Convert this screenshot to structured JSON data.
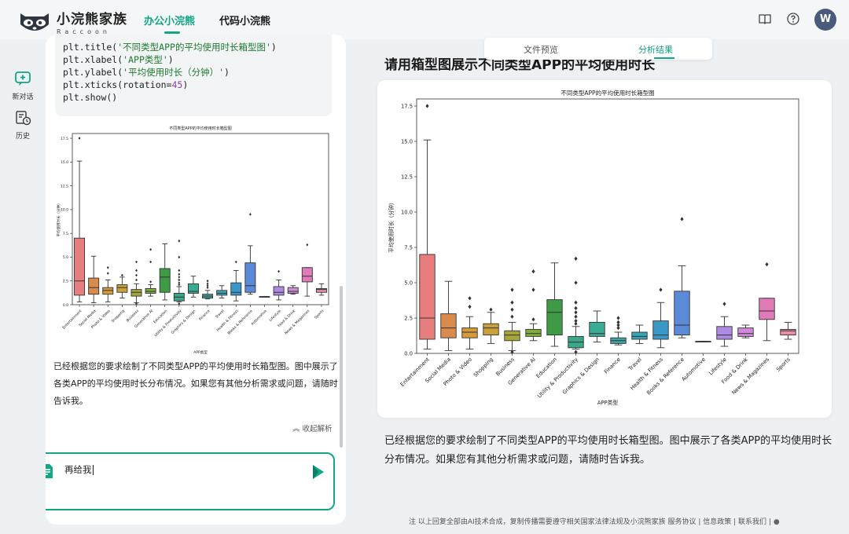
{
  "app": {
    "title": "小浣熊家族",
    "subtitle": "Raccoon"
  },
  "nav": {
    "tabs": [
      {
        "label": "办公小浣熊",
        "active": true
      },
      {
        "label": "代码小浣熊",
        "active": false
      }
    ]
  },
  "user": {
    "avatar_initial": "W"
  },
  "topbar_icons": [
    "book-icon",
    "help-icon"
  ],
  "sidebar": {
    "items": [
      {
        "label": "新对话",
        "icon": "new-chat-icon"
      },
      {
        "label": "历史",
        "icon": "history-icon"
      }
    ]
  },
  "chat": {
    "code_lines": [
      {
        "fn": "plt.title(",
        "arg": "'不同类型APP的平均使用时长箱型图'",
        "end": ")"
      },
      {
        "fn": "plt.xlabel(",
        "arg": "'APP类型'",
        "end": ")"
      },
      {
        "fn": "plt.ylabel(",
        "arg": "'平均使用时长（分钟）'",
        "end": ")"
      },
      {
        "fn": "plt.xticks(rotation=",
        "num": "45",
        "end": ")"
      },
      {
        "fn": "plt.show()",
        "end": ""
      }
    ],
    "reply": "已经根据您的要求绘制了不同类型APP的平均使用时长箱型图。图中展示了各类APP的平均使用时长分布情况。如果您有其他分析需求或问题，请随时告诉我。",
    "collapse_label": "收起解析",
    "input_value": "再给我"
  },
  "preview": {
    "tabs": [
      {
        "label": "文件预览",
        "active": false
      },
      {
        "label": "分析结果",
        "active": true
      }
    ],
    "title": "请用箱型图展示不同类型APP的平均使用时长",
    "reply": "已经根据您的要求绘制了不同类型APP的平均使用时长箱型图。图中展示了各类APP的平均使用时长分布情况。如果您有其他分析需求或问题，请随时告诉我。"
  },
  "footer": {
    "text": "注  以上回复全部由AI技术合成，复制传播需要遵守相关国家法律法规及小浣熊家族 服务协议 | 信息政策 | 联系我们 |"
  },
  "colors": {
    "accent": "#12a586"
  },
  "chart_data": {
    "type": "box",
    "title": "不同类型APP的平均使用时长箱型图",
    "xlabel": "APP类型",
    "ylabel": "平均使用时长（分钟）",
    "ylim": [
      0,
      18
    ],
    "yticks": [
      0.0,
      2.5,
      5.0,
      7.5,
      10.0,
      12.5,
      15.0,
      17.5
    ],
    "categories": [
      "Entertainment",
      "Social Media",
      "Photo & Video",
      "Shopping",
      "Business",
      "Generative AI",
      "Education",
      "Utility & Productivity",
      "Graphics & Design",
      "Finance",
      "Travel",
      "Health & Fitness",
      "Books & Reference",
      "Automotive",
      "Lifestyle",
      "Food & Drink",
      "News & Magazines",
      "Sports"
    ],
    "colors": [
      "#e87d7d",
      "#d98a4d",
      "#d59a3a",
      "#c9a03a",
      "#a6a53a",
      "#7fae3a",
      "#3f9a45",
      "#3aa68a",
      "#3aab95",
      "#3aa8a8",
      "#3aa4b8",
      "#3a98c8",
      "#5a8ad8",
      "#8a86d8",
      "#b08ae0",
      "#d08ad8",
      "#e07ab8",
      "#e890a8"
    ],
    "boxes": [
      {
        "whislo": 0.3,
        "q1": 1.0,
        "med": 2.5,
        "q3": 7.0,
        "whishi": 15.1,
        "fliers": [
          17.5
        ]
      },
      {
        "whislo": 0.2,
        "q1": 1.1,
        "med": 1.8,
        "q3": 2.8,
        "whishi": 5.1,
        "fliers": []
      },
      {
        "whislo": 0.3,
        "q1": 1.1,
        "med": 1.5,
        "q3": 1.8,
        "whishi": 2.6,
        "fliers": [
          3.9,
          3.3
        ]
      },
      {
        "whislo": 0.7,
        "q1": 1.3,
        "med": 1.8,
        "q3": 2.1,
        "whishi": 2.9,
        "fliers": [
          3.1
        ]
      },
      {
        "whislo": 0.2,
        "q1": 0.9,
        "med": 1.3,
        "q3": 1.6,
        "whishi": 2.2,
        "fliers": [
          4.5,
          3.6,
          3.1,
          2.6,
          0.1
        ]
      },
      {
        "whislo": 0.9,
        "q1": 1.2,
        "med": 1.4,
        "q3": 1.7,
        "whishi": 2.1,
        "fliers": [
          5.8,
          4.5,
          2.4
        ]
      },
      {
        "whislo": 0.5,
        "q1": 1.3,
        "med": 2.9,
        "q3": 3.8,
        "whishi": 6.4,
        "fliers": []
      },
      {
        "whislo": 0.3,
        "q1": 0.4,
        "med": 0.8,
        "q3": 1.2,
        "whishi": 1.9,
        "fliers": [
          6.7,
          5.0,
          3.6,
          3.2,
          2.9,
          2.6,
          2.3,
          2.1,
          0.1
        ]
      },
      {
        "whislo": 0.8,
        "q1": 1.2,
        "med": 1.4,
        "q3": 2.2,
        "whishi": 3.0,
        "fliers": []
      },
      {
        "whislo": 0.6,
        "q1": 0.7,
        "med": 0.9,
        "q3": 1.1,
        "whishi": 1.5,
        "fliers": [
          2.5,
          2.2,
          2.0,
          1.8
        ]
      },
      {
        "whislo": 0.7,
        "q1": 1.0,
        "med": 1.2,
        "q3": 1.5,
        "whishi": 2.0,
        "fliers": []
      },
      {
        "whislo": 0.4,
        "q1": 1.0,
        "med": 1.3,
        "q3": 2.3,
        "whishi": 3.6,
        "fliers": [
          4.5
        ]
      },
      {
        "whislo": 1.1,
        "q1": 1.3,
        "med": 2.0,
        "q3": 4.4,
        "whishi": 6.2,
        "fliers": [
          9.5
        ]
      },
      {
        "whislo": 0.85,
        "q1": 0.85,
        "med": 0.85,
        "q3": 0.85,
        "whishi": 0.85,
        "fliers": []
      },
      {
        "whislo": 0.5,
        "q1": 1.0,
        "med": 1.3,
        "q3": 1.9,
        "whishi": 2.6,
        "fliers": [
          3.5
        ]
      },
      {
        "whislo": 1.1,
        "q1": 1.2,
        "med": 1.4,
        "q3": 1.8,
        "whishi": 2.0,
        "fliers": []
      },
      {
        "whislo": 0.9,
        "q1": 2.4,
        "med": 3.0,
        "q3": 3.9,
        "whishi": 3.9,
        "fliers": [
          6.3
        ]
      },
      {
        "whislo": 1.0,
        "q1": 1.3,
        "med": 1.6,
        "q3": 1.7,
        "whishi": 2.2,
        "fliers": []
      }
    ]
  }
}
